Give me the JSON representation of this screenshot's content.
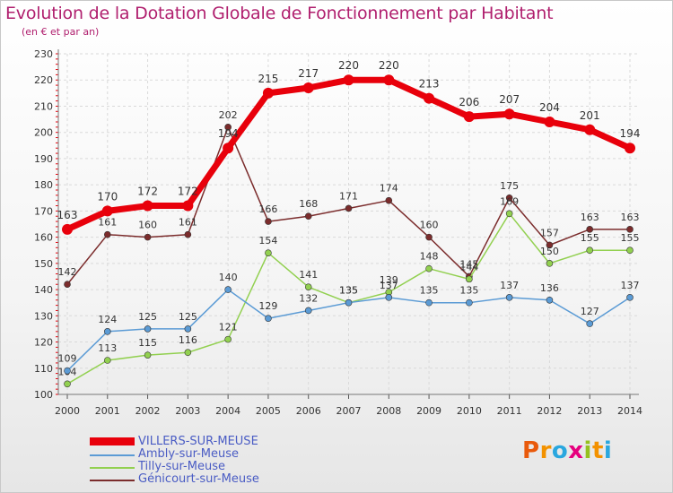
{
  "title": "Evolution de la Dotation Globale de Fonctionnement par Habitant",
  "subtitle": "(en € et par an)",
  "logo": {
    "text": "Proxiti",
    "letters": [
      {
        "ch": "P",
        "color": "#e95a0c"
      },
      {
        "ch": "r",
        "color": "#f39200"
      },
      {
        "ch": "o",
        "color": "#2aa7df"
      },
      {
        "ch": "x",
        "color": "#e6007e"
      },
      {
        "ch": "i",
        "color": "#95c11f"
      },
      {
        "ch": "t",
        "color": "#f39200"
      },
      {
        "ch": "i",
        "color": "#2aa7df"
      }
    ]
  },
  "chart_data": {
    "type": "line",
    "title": "Evolution de la Dotation Globale de Fonctionnement par Habitant",
    "subtitle": "(en € et par an)",
    "x": [
      "2000",
      "2001",
      "2002",
      "2003",
      "2004",
      "2005",
      "2006",
      "2007",
      "2008",
      "2009",
      "2010",
      "2011",
      "2012",
      "2013",
      "2014"
    ],
    "ylim": [
      100,
      230
    ],
    "yticks": [
      100,
      110,
      120,
      130,
      140,
      150,
      160,
      170,
      180,
      190,
      200,
      210,
      220,
      230
    ],
    "grid": true,
    "legend_position": "bottom-left",
    "series": [
      {
        "name": "VILLERS-SUR-MEUSE",
        "color": "#e8000b",
        "values": [
          163,
          170,
          172,
          172,
          194,
          215,
          217,
          220,
          220,
          213,
          206,
          207,
          204,
          201,
          194
        ]
      },
      {
        "name": "Ambly-sur-Meuse",
        "color": "#5b9bd5",
        "values": [
          109,
          124,
          125,
          125,
          140,
          129,
          132,
          135,
          137,
          135,
          135,
          137,
          136,
          127,
          137
        ]
      },
      {
        "name": "Tilly-sur-Meuse",
        "color": "#92d050",
        "values": [
          104,
          113,
          115,
          116,
          121,
          154,
          141,
          135,
          139,
          148,
          144,
          169,
          150,
          155,
          155
        ]
      },
      {
        "name": "Génicourt-sur-Meuse",
        "color": "#7b2c2c",
        "values": [
          142,
          161,
          160,
          161,
          202,
          166,
          168,
          171,
          174,
          160,
          145,
          175,
          157,
          163,
          163
        ]
      }
    ]
  }
}
